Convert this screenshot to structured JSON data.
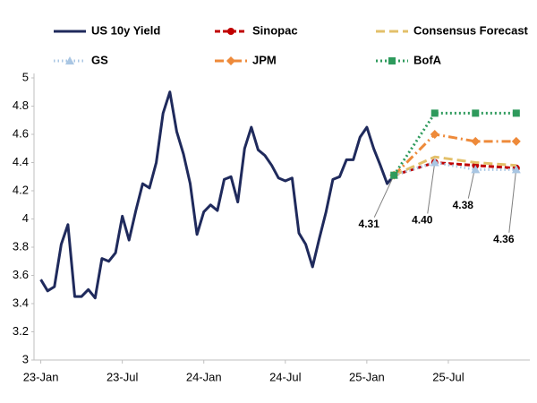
{
  "chart_data": {
    "type": "line",
    "xlim": [
      -0.5,
      36
    ],
    "xticks": [
      {
        "value": 0,
        "label": "23-Jan"
      },
      {
        "value": 6,
        "label": "23-Jul"
      },
      {
        "value": 12,
        "label": "24-Jan"
      },
      {
        "value": 18,
        "label": "24-Jul"
      },
      {
        "value": 24,
        "label": "25-Jan"
      },
      {
        "value": 30,
        "label": "25-Jul"
      }
    ],
    "ylim": [
      3,
      5
    ],
    "yticks": [
      3,
      3.2,
      3.4,
      3.6,
      3.8,
      4,
      4.2,
      4.4,
      4.6,
      4.8,
      5
    ],
    "grid": false,
    "legend": "top",
    "series": [
      {
        "name": "US 10y Yield",
        "color": "#1f2a5c",
        "x": [
          0,
          0.5,
          1,
          1.5,
          2,
          2.5,
          3,
          3.5,
          4,
          4.5,
          5,
          5.5,
          6,
          6.5,
          7,
          7.5,
          8,
          8.5,
          9,
          9.5,
          10,
          10.5,
          11,
          11.5,
          12,
          12.5,
          13,
          13.5,
          14,
          14.5,
          15,
          15.5,
          16,
          16.5,
          17,
          17.5,
          18,
          18.5,
          19,
          19.5,
          20,
          20.5,
          21,
          21.5,
          22,
          22.5,
          23,
          23.5,
          24,
          24.5,
          25,
          25.5,
          26
        ],
        "values": [
          3.57,
          3.49,
          3.52,
          3.82,
          3.96,
          3.45,
          3.45,
          3.5,
          3.44,
          3.72,
          3.7,
          3.76,
          4.02,
          3.85,
          4.06,
          4.25,
          4.22,
          4.4,
          4.75,
          4.9,
          4.62,
          4.46,
          4.25,
          3.89,
          4.05,
          4.1,
          4.06,
          4.28,
          4.3,
          4.12,
          4.5,
          4.65,
          4.49,
          4.45,
          4.38,
          4.29,
          4.27,
          4.29,
          3.9,
          3.82,
          3.66,
          3.86,
          4.05,
          4.28,
          4.3,
          4.42,
          4.42,
          4.58,
          4.65,
          4.5,
          4.38,
          4.25,
          4.31
        ]
      },
      {
        "name": "Sinopac",
        "color": "#c00000",
        "x": [
          26,
          29,
          32,
          35
        ],
        "values": [
          4.31,
          4.4,
          4.38,
          4.36
        ],
        "value_labels": [
          "4.31",
          "4.40",
          "4.38",
          "4.36"
        ]
      },
      {
        "name": "Consensus Forecast",
        "color": "#e3c06a",
        "x": [
          26,
          29,
          32,
          35
        ],
        "values": [
          4.31,
          4.44,
          4.4,
          4.38
        ]
      },
      {
        "name": "GS",
        "color": "#a9c6e3",
        "x": [
          26,
          29,
          32,
          35
        ],
        "values": [
          4.31,
          4.4,
          4.35,
          4.35
        ]
      },
      {
        "name": "JPM",
        "color": "#ee8a3a",
        "x": [
          26,
          29,
          32,
          35
        ],
        "values": [
          4.31,
          4.6,
          4.55,
          4.55
        ]
      },
      {
        "name": "BofA",
        "color": "#2e9a5c",
        "x": [
          26,
          29,
          32,
          35
        ],
        "values": [
          4.31,
          4.75,
          4.75,
          4.75
        ]
      }
    ]
  }
}
